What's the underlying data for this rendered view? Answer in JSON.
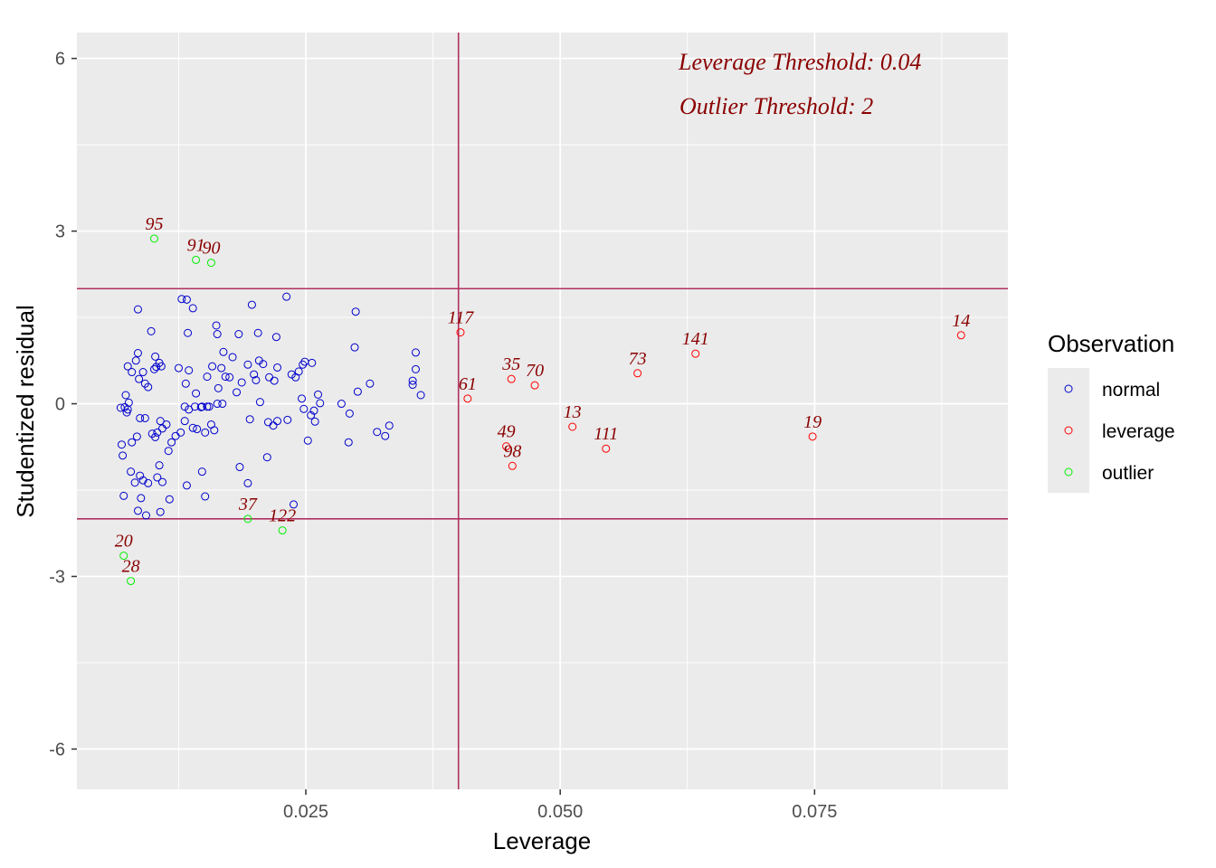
{
  "chart_data": {
    "type": "scatter",
    "xlabel": "Leverage",
    "ylabel": "Studentized residual",
    "xlim": [
      0.0025,
      0.094
    ],
    "ylim": [
      -6.7,
      6.45
    ],
    "x_ticks": [
      {
        "value": 0.025,
        "label": "0.025"
      },
      {
        "value": 0.05,
        "label": "0.050"
      },
      {
        "value": 0.075,
        "label": "0.075"
      }
    ],
    "y_ticks": [
      {
        "value": -6,
        "label": "-6"
      },
      {
        "value": -3,
        "label": "-3"
      },
      {
        "value": 0,
        "label": "0"
      },
      {
        "value": 3,
        "label": "3"
      },
      {
        "value": 6,
        "label": "6"
      }
    ],
    "grid": true,
    "background": "#ebebeb",
    "threshold_color": "#b03060",
    "leverage_threshold": 0.04,
    "outlier_threshold": 2,
    "annotations": [
      "Leverage Threshold: 0.04",
      "Outlier Threshold: 2"
    ],
    "annotation_color": "#8b0000",
    "legend": {
      "title": "Observation",
      "position": "right",
      "entries": [
        {
          "label": "normal",
          "color": "#0000cd"
        },
        {
          "label": "leverage",
          "color": "#ff0000"
        },
        {
          "label": "outlier",
          "color": "#00ee00"
        }
      ]
    },
    "series": [
      {
        "name": "normal",
        "color": "#0000cd",
        "points": [
          [
            0.0068,
            -0.07
          ],
          [
            0.0072,
            -0.06
          ],
          [
            0.0075,
            -0.1
          ],
          [
            0.0074,
            -0.15
          ],
          [
            0.0073,
            0.15
          ],
          [
            0.0076,
            0.02
          ],
          [
            0.0069,
            -0.71
          ],
          [
            0.007,
            -0.9
          ],
          [
            0.0071,
            -1.6
          ],
          [
            0.0078,
            -1.18
          ],
          [
            0.0079,
            -0.67
          ],
          [
            0.0082,
            -1.37
          ],
          [
            0.0084,
            -0.57
          ],
          [
            0.0085,
            -1.86
          ],
          [
            0.0087,
            -1.25
          ],
          [
            0.0088,
            -1.64
          ],
          [
            0.009,
            -1.33
          ],
          [
            0.0093,
            -1.94
          ],
          [
            0.0095,
            -1.38
          ],
          [
            0.0087,
            -0.25
          ],
          [
            0.0092,
            -0.25
          ],
          [
            0.0099,
            -0.52
          ],
          [
            0.0102,
            -0.58
          ],
          [
            0.0104,
            -0.5
          ],
          [
            0.0107,
            -0.3
          ],
          [
            0.0109,
            -0.43
          ],
          [
            0.0113,
            -0.36
          ],
          [
            0.0115,
            -0.82
          ],
          [
            0.0118,
            -0.67
          ],
          [
            0.0122,
            -0.56
          ],
          [
            0.0127,
            -0.5
          ],
          [
            0.0131,
            -0.3
          ],
          [
            0.0135,
            -0.1
          ],
          [
            0.0139,
            -0.42
          ],
          [
            0.0143,
            -0.44
          ],
          [
            0.0147,
            -0.06
          ],
          [
            0.0151,
            -0.5
          ],
          [
            0.0155,
            -0.05
          ],
          [
            0.016,
            -0.46
          ],
          [
            0.0157,
            -0.36
          ],
          [
            0.0106,
            -1.07
          ],
          [
            0.0104,
            -1.28
          ],
          [
            0.0109,
            -1.36
          ],
          [
            0.0107,
            -1.88
          ],
          [
            0.0116,
            -1.66
          ],
          [
            0.0133,
            -1.42
          ],
          [
            0.0148,
            -1.18
          ],
          [
            0.0151,
            -1.61
          ],
          [
            0.0075,
            0.65
          ],
          [
            0.0079,
            0.55
          ],
          [
            0.0083,
            0.75
          ],
          [
            0.0085,
            0.88
          ],
          [
            0.0086,
            0.43
          ],
          [
            0.009,
            0.55
          ],
          [
            0.0092,
            0.35
          ],
          [
            0.0095,
            0.29
          ],
          [
            0.0101,
            0.6
          ],
          [
            0.0103,
            0.64
          ],
          [
            0.0106,
            0.71
          ],
          [
            0.0108,
            0.65
          ],
          [
            0.0125,
            0.62
          ],
          [
            0.0132,
            0.35
          ],
          [
            0.0135,
            0.58
          ],
          [
            0.0142,
            0.18
          ],
          [
            0.0153,
            0.47
          ],
          [
            0.0158,
            0.65
          ],
          [
            0.0164,
            0.27
          ],
          [
            0.0167,
            0.62
          ],
          [
            0.0169,
            0.9
          ],
          [
            0.0171,
            0.47
          ],
          [
            0.0175,
            0.46
          ],
          [
            0.0178,
            0.81
          ],
          [
            0.0182,
            0.2
          ],
          [
            0.0187,
            0.37
          ],
          [
            0.0193,
            0.68
          ],
          [
            0.0199,
            0.51
          ],
          [
            0.0201,
            0.41
          ],
          [
            0.0204,
            0.75
          ],
          [
            0.0208,
            0.69
          ],
          [
            0.0214,
            0.46
          ],
          [
            0.0219,
            0.4
          ],
          [
            0.0222,
            0.63
          ],
          [
            0.0236,
            0.51
          ],
          [
            0.024,
            0.46
          ],
          [
            0.0243,
            0.56
          ],
          [
            0.0247,
            0.68
          ],
          [
            0.0249,
            0.73
          ],
          [
            0.0256,
            0.71
          ],
          [
            0.0085,
            1.64
          ],
          [
            0.0098,
            1.26
          ],
          [
            0.0102,
            0.82
          ],
          [
            0.0128,
            1.82
          ],
          [
            0.0133,
            1.81
          ],
          [
            0.0134,
            1.23
          ],
          [
            0.0139,
            1.66
          ],
          [
            0.0162,
            1.36
          ],
          [
            0.0163,
            1.21
          ],
          [
            0.0184,
            1.21
          ],
          [
            0.0197,
            1.72
          ],
          [
            0.0203,
            1.23
          ],
          [
            0.0221,
            1.16
          ],
          [
            0.0231,
            1.86
          ],
          [
            0.0163,
            0.0
          ],
          [
            0.0168,
            0.0
          ],
          [
            0.0195,
            -0.27
          ],
          [
            0.0205,
            0.03
          ],
          [
            0.0213,
            -0.32
          ],
          [
            0.0218,
            -0.38
          ],
          [
            0.0222,
            -0.3
          ],
          [
            0.0232,
            -0.28
          ],
          [
            0.0212,
            -0.93
          ],
          [
            0.0185,
            -1.1
          ],
          [
            0.0193,
            -1.38
          ],
          [
            0.0238,
            -1.75
          ],
          [
            0.0246,
            0.09
          ],
          [
            0.0248,
            -0.09
          ],
          [
            0.0252,
            -0.64
          ],
          [
            0.0255,
            -0.2
          ],
          [
            0.0259,
            -0.31
          ],
          [
            0.0258,
            -0.12
          ],
          [
            0.0262,
            0.16
          ],
          [
            0.0264,
            0.01
          ],
          [
            0.0285,
            0.0
          ],
          [
            0.0292,
            -0.67
          ],
          [
            0.0293,
            -0.17
          ],
          [
            0.0299,
            1.6
          ],
          [
            0.0298,
            0.98
          ],
          [
            0.0301,
            0.21
          ],
          [
            0.0313,
            0.35
          ],
          [
            0.032,
            -0.49
          ],
          [
            0.0328,
            -0.56
          ],
          [
            0.0332,
            -0.38
          ],
          [
            0.0355,
            0.33
          ],
          [
            0.0355,
            0.4
          ],
          [
            0.0358,
            0.89
          ],
          [
            0.0358,
            0.6
          ],
          [
            0.0363,
            0.15
          ],
          [
            0.0131,
            -0.05
          ],
          [
            0.0141,
            -0.05
          ],
          [
            0.0148,
            -0.05
          ],
          [
            0.0153,
            -0.05
          ]
        ]
      },
      {
        "name": "leverage",
        "color": "#ff0000",
        "points": [
          {
            "x": 0.0402,
            "y": 1.24,
            "label": "117"
          },
          {
            "x": 0.0894,
            "y": 1.19,
            "label": "14"
          },
          {
            "x": 0.0633,
            "y": 0.87,
            "label": "141"
          },
          {
            "x": 0.0576,
            "y": 0.53,
            "label": "73"
          },
          {
            "x": 0.0452,
            "y": 0.43,
            "label": "35"
          },
          {
            "x": 0.0475,
            "y": 0.32,
            "label": "70"
          },
          {
            "x": 0.0409,
            "y": 0.09,
            "label": "61"
          },
          {
            "x": 0.0512,
            "y": -0.4,
            "label": "13"
          },
          {
            "x": 0.0545,
            "y": -0.78,
            "label": "111"
          },
          {
            "x": 0.0748,
            "y": -0.57,
            "label": "19"
          },
          {
            "x": 0.0447,
            "y": -0.74,
            "label": "49"
          },
          {
            "x": 0.0453,
            "y": -1.08,
            "label": "98"
          }
        ]
      },
      {
        "name": "outlier",
        "color": "#00ee00",
        "points": [
          {
            "x": 0.0101,
            "y": 2.87,
            "label": "95"
          },
          {
            "x": 0.0142,
            "y": 2.5,
            "label": "91"
          },
          {
            "x": 0.0157,
            "y": 2.45,
            "label": "90"
          },
          {
            "x": 0.0193,
            "y": -2.0,
            "label": "37"
          },
          {
            "x": 0.0227,
            "y": -2.2,
            "label": "122"
          },
          {
            "x": 0.0071,
            "y": -2.64,
            "label": "20"
          },
          {
            "x": 0.0078,
            "y": -3.08,
            "label": "28"
          }
        ]
      }
    ]
  }
}
